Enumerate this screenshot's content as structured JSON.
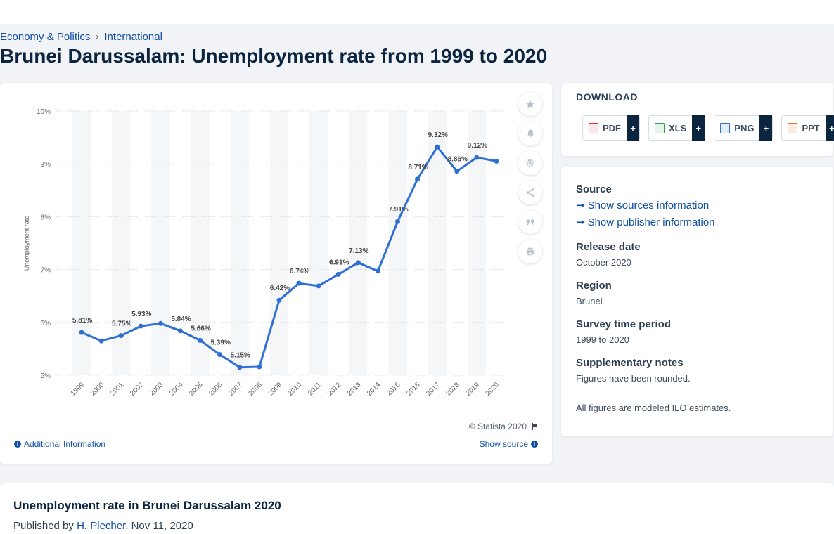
{
  "breadcrumb": {
    "item1": "Economy & Politics",
    "sep": "›",
    "item2": "International"
  },
  "page_title": "Brunei Darussalam: Unemployment rate from 1999 to 2020",
  "chart_data": {
    "type": "line",
    "title": "",
    "xlabel": "",
    "ylabel": "Unemployment rate",
    "categories": [
      "1999",
      "2000",
      "2001",
      "2002",
      "2003",
      "2004",
      "2005",
      "2006",
      "2007",
      "2008",
      "2009",
      "2010",
      "2011",
      "2012",
      "2013",
      "2014",
      "2015",
      "2016",
      "2017",
      "2018",
      "2019",
      "2020"
    ],
    "series": [
      {
        "values": [
          5.81,
          5.65,
          5.75,
          5.93,
          5.98,
          5.84,
          5.66,
          5.39,
          5.15,
          5.16,
          6.42,
          6.74,
          6.69,
          6.91,
          7.13,
          6.97,
          7.91,
          8.71,
          9.32,
          8.86,
          9.12,
          9.05
        ]
      }
    ],
    "data_labels": [
      "5.81%",
      "",
      "5.75%",
      "5.93%",
      "",
      "5.84%",
      "5.66%",
      "5.39%",
      "5.15%",
      "",
      "6.42%",
      "6.74%",
      "",
      "6.91%",
      "7.13%",
      "",
      "7.91%",
      "8.71%",
      "9.32%",
      "8.86%",
      "9.12%",
      ""
    ],
    "y_ticks": [
      "5%",
      "6%",
      "7%",
      "8%",
      "9%",
      "10%"
    ],
    "ylim": [
      5,
      10
    ],
    "grid": true,
    "line_color": "#2e6fd4"
  },
  "tools": {
    "star": "star-icon",
    "bell": "bell-icon",
    "gear": "gear-icon",
    "share": "share-icon",
    "quote": "quote-icon",
    "print": "print-icon"
  },
  "copyright": "© Statista 2020",
  "additional_info": "Additional Information",
  "show_source": "Show source",
  "download": {
    "title": "DOWNLOAD",
    "buttons": [
      {
        "label": "PDF",
        "color": "#d9363e"
      },
      {
        "label": "XLS",
        "color": "#2e9e4f"
      },
      {
        "label": "PNG",
        "color": "#2e6fd4"
      },
      {
        "label": "PPT",
        "color": "#e8732a"
      }
    ],
    "plus": "+"
  },
  "meta": {
    "source_h": "Source",
    "sources_link": "Show sources information",
    "publisher_link": "Show publisher information",
    "release_h": "Release date",
    "release_v": "October 2020",
    "region_h": "Region",
    "region_v": "Brunei",
    "period_h": "Survey time period",
    "period_v": "1999 to 2020",
    "notes_h": "Supplementary notes",
    "notes_v": "Figures have been rounded.",
    "notes_v2": "All figures are modeled ILO estimates."
  },
  "bottom": {
    "title": "Unemployment rate in Brunei Darussalam 2020",
    "published_prefix": "Published by",
    "author": "H. Plecher",
    "date": ", Nov 11, 2020"
  }
}
